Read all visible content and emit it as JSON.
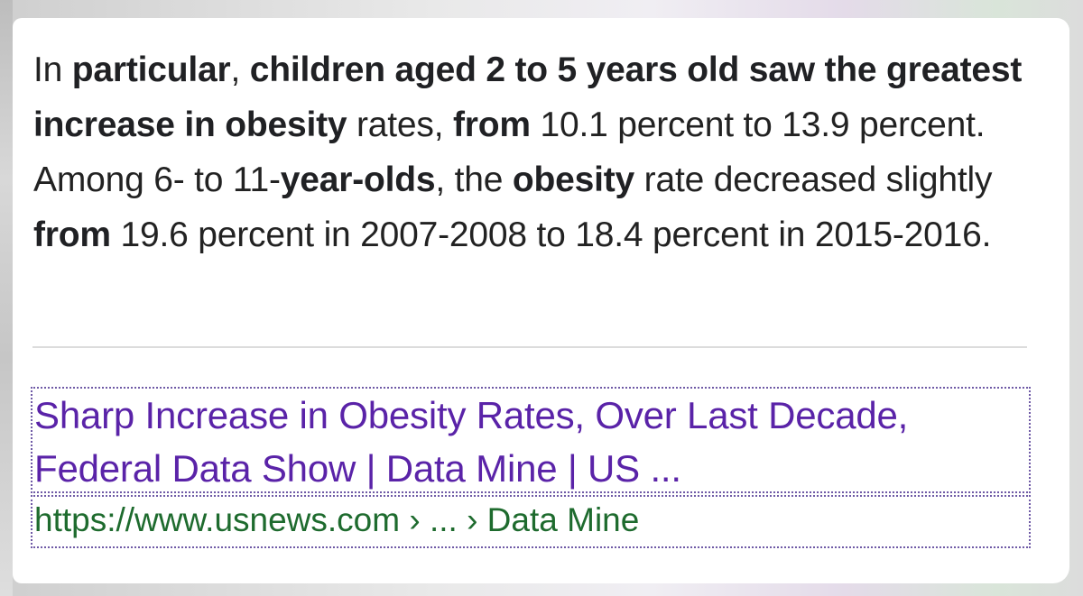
{
  "snippet": {
    "segments": [
      {
        "text": "In ",
        "bold": false
      },
      {
        "text": "particular",
        "bold": true
      },
      {
        "text": ", ",
        "bold": false
      },
      {
        "text": "children aged 2 to 5 years old saw the greatest increase in obesity",
        "bold": true
      },
      {
        "text": " rates, ",
        "bold": false
      },
      {
        "text": "from",
        "bold": true
      },
      {
        "text": " 10.1 percent to 13.9 percent. Among 6- to 11-",
        "bold": false
      },
      {
        "text": "year-olds",
        "bold": true
      },
      {
        "text": ", the ",
        "bold": false
      },
      {
        "text": "obesity",
        "bold": true
      },
      {
        "text": " rate decreased slightly ",
        "bold": false
      },
      {
        "text": "from",
        "bold": true
      },
      {
        "text": " 19.6 percent in 2007-2008 to 18.4 percent in 2015-2016.",
        "bold": false
      }
    ]
  },
  "result": {
    "title_line1": "Sharp Increase in Obesity Rates, Over Last Decade,",
    "title_line2": "Federal Data Show | Data Mine | US ...",
    "url": "https://www.usnews.com › ... › Data Mine"
  },
  "colors": {
    "title_link": "#5a23a8",
    "url_text": "#1e6b2e",
    "body_text": "#222222"
  }
}
